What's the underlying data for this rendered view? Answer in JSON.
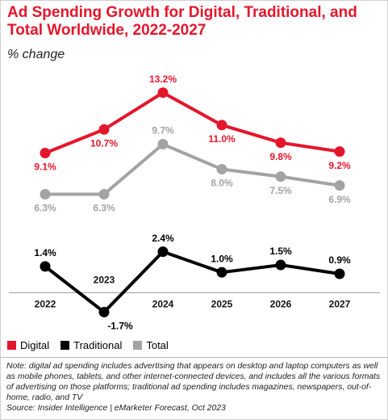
{
  "chart_data": {
    "type": "line",
    "title": "Ad Spending Growth for Digital, Traditional, and Total Worldwide, 2022-2027",
    "subtitle": "% change",
    "categories": [
      "2022",
      "2023",
      "2024",
      "2025",
      "2026",
      "2027"
    ],
    "series": [
      {
        "name": "Digital",
        "color": "#e4162c",
        "values": [
          9.1,
          10.7,
          13.2,
          11.0,
          9.8,
          9.2
        ],
        "value_labels": [
          "9.1%",
          "10.7%",
          "13.2%",
          "11.0%",
          "9.8%",
          "9.2%"
        ]
      },
      {
        "name": "Traditional",
        "color": "#000000",
        "values": [
          1.4,
          -1.7,
          2.4,
          1.0,
          1.5,
          0.9
        ],
        "value_labels": [
          "1.4%",
          "-1.7%",
          "2.4%",
          "1.0%",
          "1.5%",
          "0.9%"
        ]
      },
      {
        "name": "Total",
        "color": "#a3a3a3",
        "values": [
          6.3,
          6.3,
          9.7,
          8.0,
          7.5,
          6.9
        ],
        "value_labels": [
          "6.3%",
          "6.3%",
          "9.7%",
          "8.0%",
          "7.5%",
          "6.9%"
        ]
      }
    ],
    "ylim": [
      -2.5,
      14.5
    ],
    "note": "Note: digital ad spending includes advertising that appears on desktop and laptop computers as well as mobile phones, tablets, and other internet-connected devices, and includes all the various formats of advertising on those platforms; traditional ad spending includes magazines, newspapers, out-of-home, radio, and TV",
    "source": "Source: Insider Intelligence | eMarketer Forecast, Oct 2023"
  }
}
